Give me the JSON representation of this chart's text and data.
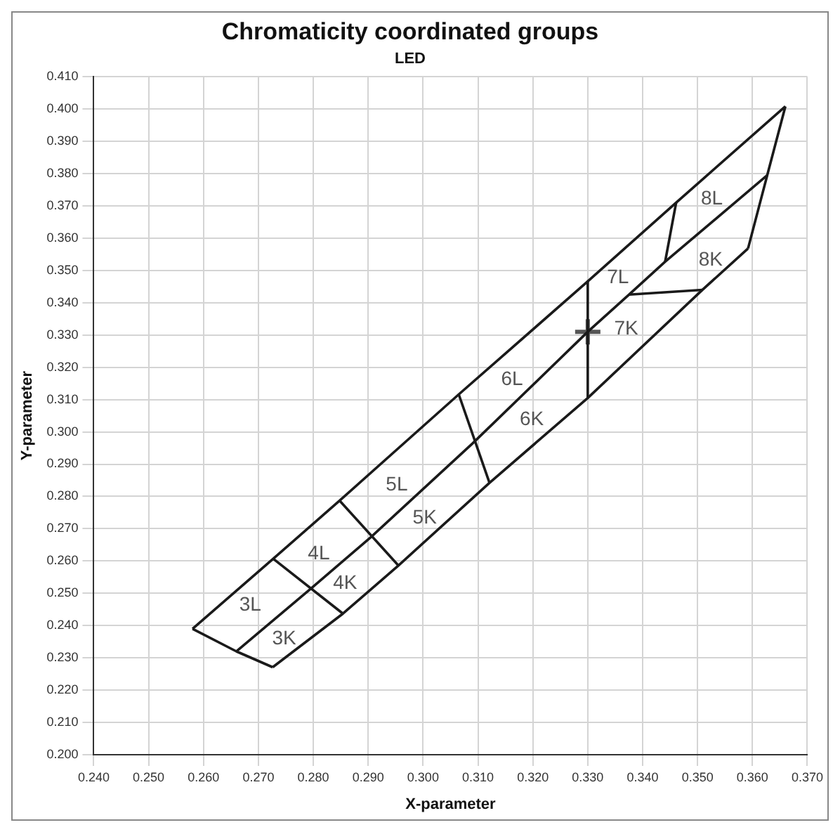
{
  "chart_data": {
    "type": "line",
    "title": "Chromaticity coordinated groups",
    "subtitle": "LED",
    "xlabel": "X-parameter",
    "ylabel": "Y-parameter",
    "xlim": [
      0.24,
      0.37
    ],
    "ylim": [
      0.2,
      0.41
    ],
    "xticks": [
      {
        "value": 0.24,
        "label": "0.240"
      },
      {
        "value": 0.25,
        "label": "0.250"
      },
      {
        "value": 0.26,
        "label": "0.260"
      },
      {
        "value": 0.27,
        "label": "0.270"
      },
      {
        "value": 0.28,
        "label": "0.280"
      },
      {
        "value": 0.29,
        "label": "0.290"
      },
      {
        "value": 0.3,
        "label": "0.300"
      },
      {
        "value": 0.31,
        "label": "0.310"
      },
      {
        "value": 0.32,
        "label": "0.320"
      },
      {
        "value": 0.33,
        "label": "0.330"
      },
      {
        "value": 0.34,
        "label": "0.340"
      },
      {
        "value": 0.35,
        "label": "0.350"
      },
      {
        "value": 0.36,
        "label": "0.360"
      },
      {
        "value": 0.37,
        "label": "0.370"
      }
    ],
    "yticks": [
      {
        "value": 0.2,
        "label": "0.200"
      },
      {
        "value": 0.21,
        "label": "0.210"
      },
      {
        "value": 0.22,
        "label": "0.220"
      },
      {
        "value": 0.23,
        "label": "0.230"
      },
      {
        "value": 0.24,
        "label": "0.240"
      },
      {
        "value": 0.25,
        "label": "0.250"
      },
      {
        "value": 0.26,
        "label": "0.260"
      },
      {
        "value": 0.27,
        "label": "0.270"
      },
      {
        "value": 0.28,
        "label": "0.280"
      },
      {
        "value": 0.29,
        "label": "0.290"
      },
      {
        "value": 0.3,
        "label": "0.300"
      },
      {
        "value": 0.31,
        "label": "0.310"
      },
      {
        "value": 0.32,
        "label": "0.320"
      },
      {
        "value": 0.33,
        "label": "0.330"
      },
      {
        "value": 0.34,
        "label": "0.340"
      },
      {
        "value": 0.35,
        "label": "0.350"
      },
      {
        "value": 0.36,
        "label": "0.360"
      },
      {
        "value": 0.37,
        "label": "0.370"
      },
      {
        "value": 0.38,
        "label": "0.380"
      },
      {
        "value": 0.39,
        "label": "0.390"
      },
      {
        "value": 0.4,
        "label": "0.400"
      },
      {
        "value": 0.41,
        "label": "0.410"
      }
    ],
    "grid": true,
    "legend": false,
    "marker": "none",
    "line_style": "solid",
    "series": [
      {
        "color": "#1a1a1a",
        "x": [
          0.258,
          0.2727,
          0.2848,
          0.3065,
          0.33,
          0.3461,
          0.366
        ],
        "values": [
          0.239,
          0.2607,
          0.2787,
          0.3116,
          0.3466,
          0.371,
          0.4008
        ]
      },
      {
        "color": "#1a1a1a",
        "x": [
          0.3592,
          0.3627,
          0.366
        ],
        "values": [
          0.3568,
          0.3795,
          0.4008
        ]
      },
      {
        "color": "#1a1a1a",
        "x": [
          0.2726,
          0.2854,
          0.2955,
          0.3121,
          0.33,
          0.3509,
          0.3592
        ],
        "values": [
          0.2271,
          0.2437,
          0.2586,
          0.2842,
          0.3105,
          0.344,
          0.3568
        ]
      },
      {
        "color": "#1a1a1a",
        "x": [
          0.258,
          0.266,
          0.2726
        ],
        "values": [
          0.239,
          0.232,
          0.2271
        ]
      },
      {
        "color": "#1a1a1a",
        "x": [
          0.266,
          0.2796,
          0.2905,
          0.309,
          0.33,
          0.3375,
          0.3441,
          0.3627
        ],
        "values": [
          0.232,
          0.2515,
          0.2674,
          0.2964,
          0.331,
          0.3425,
          0.3527,
          0.3795
        ]
      },
      {
        "color": "#1a1a1a",
        "x": [
          0.2727,
          0.2854
        ],
        "values": [
          0.2607,
          0.2437
        ]
      },
      {
        "color": "#1a1a1a",
        "x": [
          0.2848,
          0.2955
        ],
        "values": [
          0.2787,
          0.2586
        ]
      },
      {
        "color": "#1a1a1a",
        "x": [
          0.3065,
          0.3121
        ],
        "values": [
          0.3116,
          0.2842
        ]
      },
      {
        "color": "#1a1a1a",
        "x": [
          0.33,
          0.33
        ],
        "values": [
          0.3466,
          0.3105
        ]
      },
      {
        "color": "#1a1a1a",
        "x": [
          0.3375,
          0.3509
        ],
        "values": [
          0.3425,
          0.344
        ]
      },
      {
        "color": "#1a1a1a",
        "x": [
          0.3441,
          0.3461
        ],
        "values": [
          0.3527,
          0.371
        ]
      },
      {
        "type": "scatter",
        "marker": "cross",
        "color": "#555555",
        "x": [
          0.33
        ],
        "values": [
          0.331
        ]
      }
    ],
    "annotations": [
      "3L",
      "3K",
      "4L",
      "4K",
      "5L",
      "5K",
      "6L",
      "6K",
      "7L",
      "7K",
      "8L",
      "8K"
    ]
  }
}
